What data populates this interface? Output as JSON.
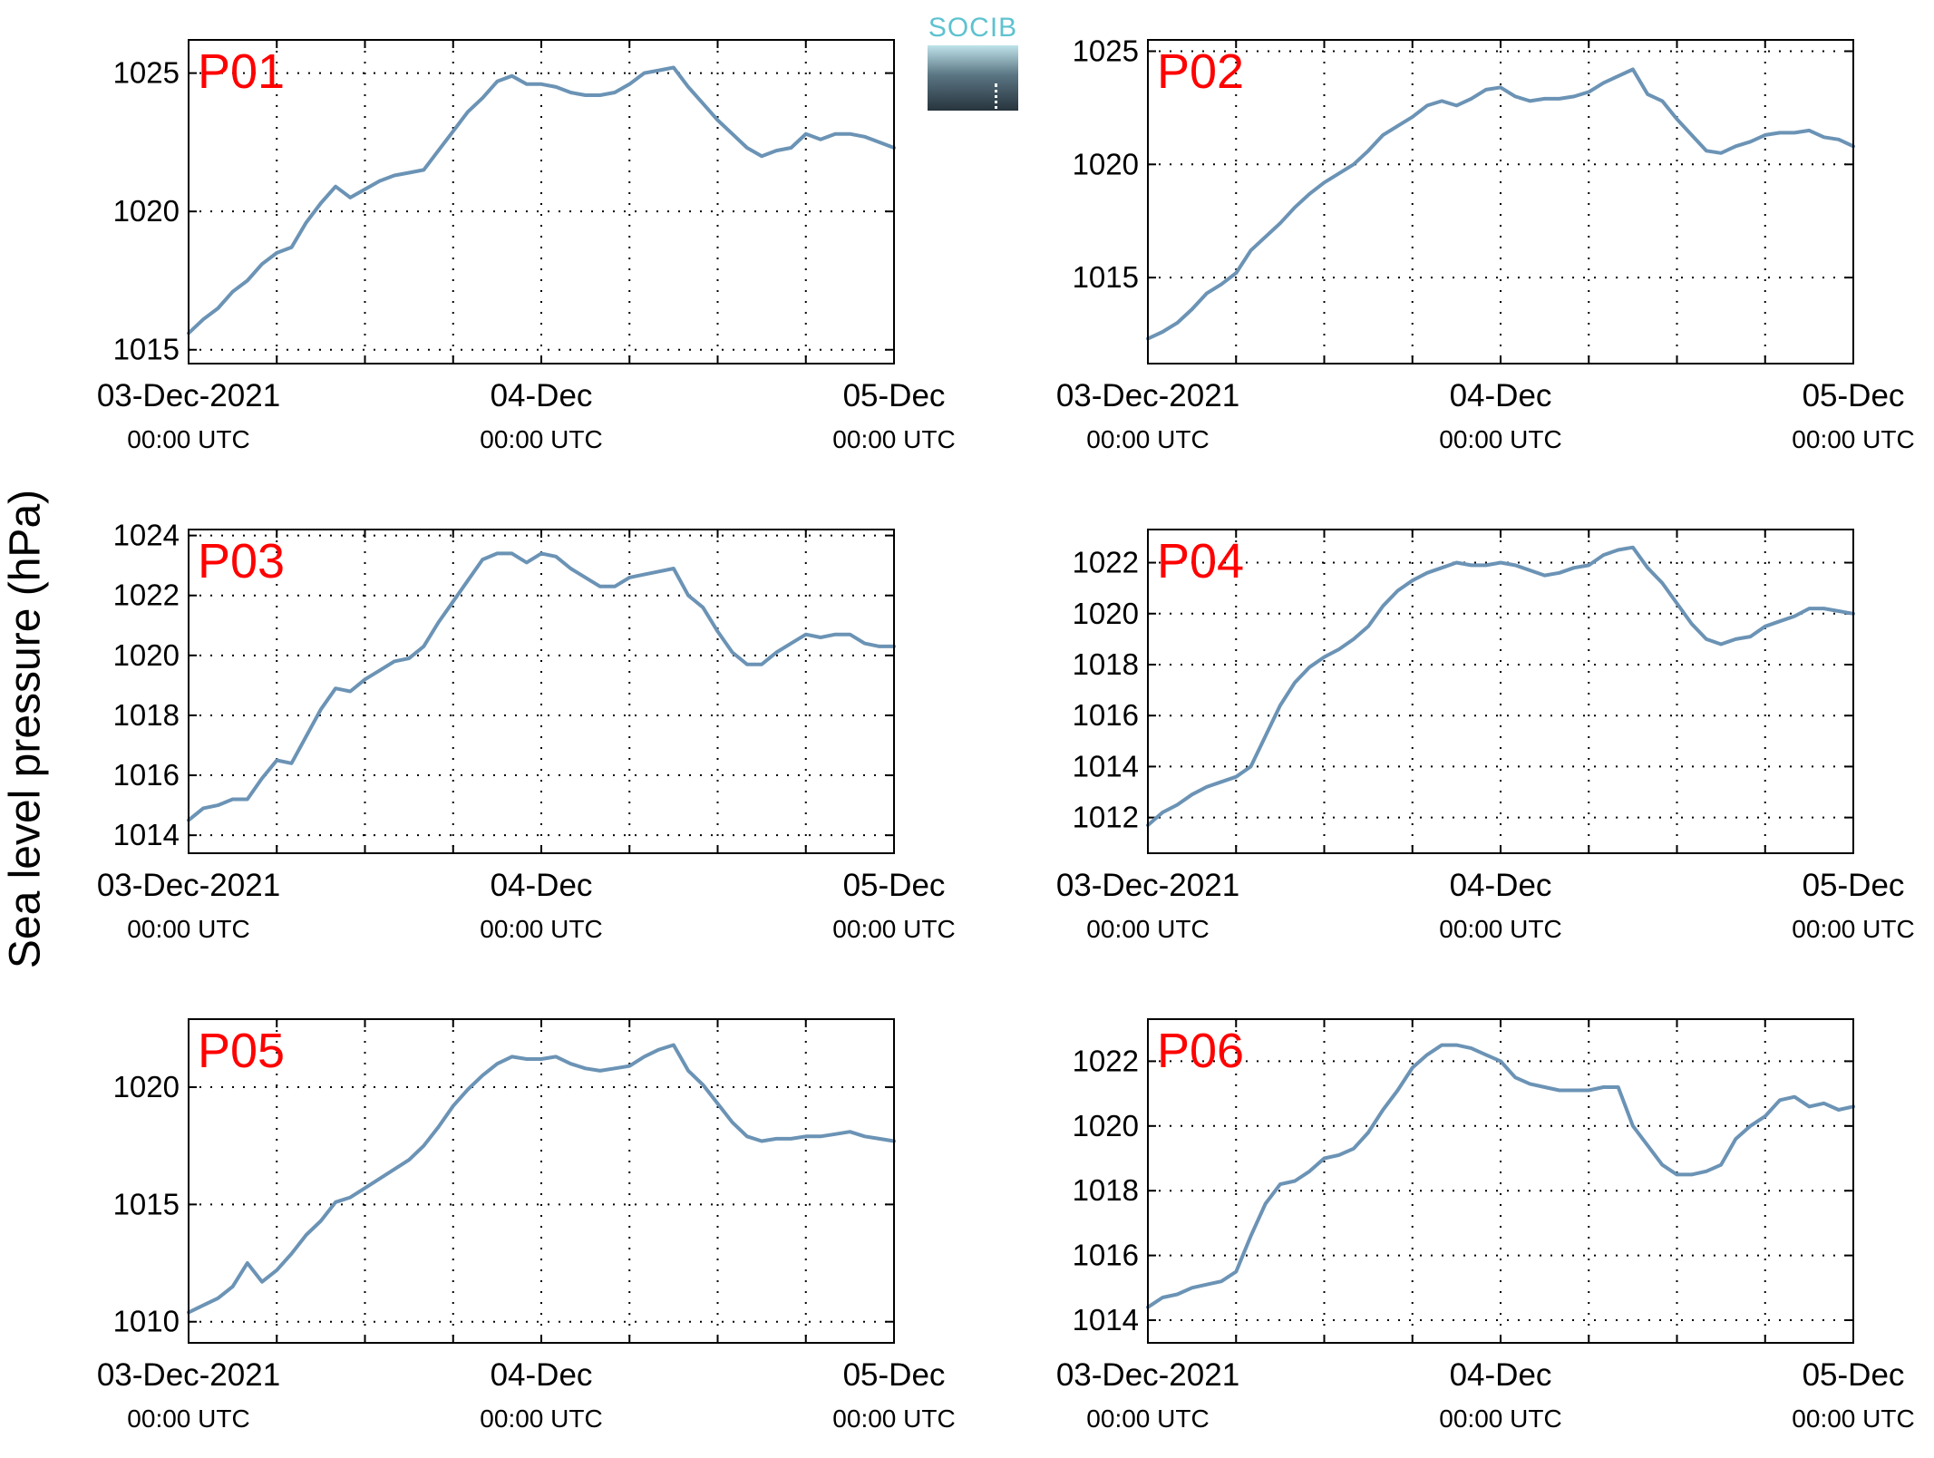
{
  "figure": {
    "ylabel": "Sea level pressure (hPa)",
    "logo_text": "SOCIB",
    "line_color": "#6b93b5",
    "label_color": "#ff0000"
  },
  "chart_data": [
    {
      "type": "line",
      "label": "P01",
      "x_tick_labels": [
        [
          "03-Dec-2021",
          "00:00 UTC"
        ],
        [
          "04-Dec",
          "00:00 UTC"
        ],
        [
          "05-Dec",
          "00:00 UTC"
        ]
      ],
      "x_range_hours": [
        0,
        48
      ],
      "ylim": [
        1014.5,
        1026.2
      ],
      "yticks": [
        1015,
        1020,
        1025
      ],
      "grid": true,
      "x": [
        0,
        1,
        2,
        3,
        4,
        5,
        6,
        7,
        8,
        9,
        10,
        11,
        12,
        13,
        14,
        15,
        16,
        17,
        18,
        19,
        20,
        21,
        22,
        23,
        24,
        25,
        26,
        27,
        28,
        29,
        30,
        31,
        32,
        33,
        34,
        35,
        36,
        37,
        38,
        39,
        40,
        41,
        42,
        43,
        44,
        45,
        46,
        47,
        48
      ],
      "y": [
        1015.6,
        1016.1,
        1016.5,
        1017.1,
        1017.5,
        1018.1,
        1018.5,
        1018.7,
        1019.6,
        1020.3,
        1020.9,
        1020.5,
        1020.8,
        1021.1,
        1021.3,
        1021.4,
        1021.5,
        1022.2,
        1022.9,
        1023.6,
        1024.1,
        1024.7,
        1024.9,
        1024.6,
        1024.6,
        1024.5,
        1024.3,
        1024.2,
        1024.2,
        1024.3,
        1024.6,
        1025.0,
        1025.1,
        1025.2,
        1024.5,
        1023.9,
        1023.3,
        1022.8,
        1022.3,
        1022.0,
        1022.2,
        1022.3,
        1022.8,
        1022.6,
        1022.8,
        1022.8,
        1022.7,
        1022.5,
        1022.3
      ]
    },
    {
      "type": "line",
      "label": "P02",
      "x_tick_labels": [
        [
          "03-Dec-2021",
          "00:00 UTC"
        ],
        [
          "04-Dec",
          "00:00 UTC"
        ],
        [
          "05-Dec",
          "00:00 UTC"
        ]
      ],
      "x_range_hours": [
        0,
        48
      ],
      "ylim": [
        1011.2,
        1025.5
      ],
      "yticks": [
        1015,
        1020,
        1025
      ],
      "grid": true,
      "x": [
        0,
        1,
        2,
        3,
        4,
        5,
        6,
        7,
        8,
        9,
        10,
        11,
        12,
        13,
        14,
        15,
        16,
        17,
        18,
        19,
        20,
        21,
        22,
        23,
        24,
        25,
        26,
        27,
        28,
        29,
        30,
        31,
        32,
        33,
        34,
        35,
        36,
        37,
        38,
        39,
        40,
        41,
        42,
        43,
        44,
        45,
        46,
        47,
        48
      ],
      "y": [
        1012.3,
        1012.6,
        1013.0,
        1013.6,
        1014.3,
        1014.7,
        1015.2,
        1016.2,
        1016.8,
        1017.4,
        1018.1,
        1018.7,
        1019.2,
        1019.6,
        1020.0,
        1020.6,
        1021.3,
        1021.7,
        1022.1,
        1022.6,
        1022.8,
        1022.6,
        1022.9,
        1023.3,
        1023.4,
        1023.0,
        1022.8,
        1022.9,
        1022.9,
        1023.0,
        1023.2,
        1023.6,
        1023.9,
        1024.2,
        1023.1,
        1022.8,
        1022.0,
        1021.3,
        1020.6,
        1020.5,
        1020.8,
        1021.0,
        1021.3,
        1021.4,
        1021.4,
        1021.5,
        1021.2,
        1021.1,
        1020.8
      ]
    },
    {
      "type": "line",
      "label": "P03",
      "x_tick_labels": [
        [
          "03-Dec-2021",
          "00:00 UTC"
        ],
        [
          "04-Dec",
          "00:00 UTC"
        ],
        [
          "05-Dec",
          "00:00 UTC"
        ]
      ],
      "x_range_hours": [
        0,
        48
      ],
      "ylim": [
        1013.4,
        1024.2
      ],
      "yticks": [
        1014,
        1016,
        1018,
        1020,
        1022,
        1024
      ],
      "grid": true,
      "x": [
        0,
        1,
        2,
        3,
        4,
        5,
        6,
        7,
        8,
        9,
        10,
        11,
        12,
        13,
        14,
        15,
        16,
        17,
        18,
        19,
        20,
        21,
        22,
        23,
        24,
        25,
        26,
        27,
        28,
        29,
        30,
        31,
        32,
        33,
        34,
        35,
        36,
        37,
        38,
        39,
        40,
        41,
        42,
        43,
        44,
        45,
        46,
        47,
        48
      ],
      "y": [
        1014.5,
        1014.9,
        1015.0,
        1015.2,
        1015.2,
        1015.9,
        1016.5,
        1016.4,
        1017.3,
        1018.2,
        1018.9,
        1018.8,
        1019.2,
        1019.5,
        1019.8,
        1019.9,
        1020.3,
        1021.1,
        1021.8,
        1022.5,
        1023.2,
        1023.4,
        1023.4,
        1023.1,
        1023.4,
        1023.3,
        1022.9,
        1022.6,
        1022.3,
        1022.3,
        1022.6,
        1022.7,
        1022.8,
        1022.9,
        1022.0,
        1021.6,
        1020.8,
        1020.1,
        1019.7,
        1019.7,
        1020.1,
        1020.4,
        1020.7,
        1020.6,
        1020.7,
        1020.7,
        1020.4,
        1020.3,
        1020.3
      ]
    },
    {
      "type": "line",
      "label": "P04",
      "x_tick_labels": [
        [
          "03-Dec-2021",
          "00:00 UTC"
        ],
        [
          "04-Dec",
          "00:00 UTC"
        ],
        [
          "05-Dec",
          "00:00 UTC"
        ]
      ],
      "x_range_hours": [
        0,
        48
      ],
      "ylim": [
        1010.6,
        1023.3
      ],
      "yticks": [
        1012,
        1014,
        1016,
        1018,
        1020,
        1022
      ],
      "grid": true,
      "x": [
        0,
        1,
        2,
        3,
        4,
        5,
        6,
        7,
        8,
        9,
        10,
        11,
        12,
        13,
        14,
        15,
        16,
        17,
        18,
        19,
        20,
        21,
        22,
        23,
        24,
        25,
        26,
        27,
        28,
        29,
        30,
        31,
        32,
        33,
        34,
        35,
        36,
        37,
        38,
        39,
        40,
        41,
        42,
        43,
        44,
        45,
        46,
        47,
        48
      ],
      "y": [
        1011.7,
        1012.2,
        1012.5,
        1012.9,
        1013.2,
        1013.4,
        1013.6,
        1014.0,
        1015.2,
        1016.4,
        1017.3,
        1017.9,
        1018.3,
        1018.6,
        1019.0,
        1019.5,
        1020.3,
        1020.9,
        1021.3,
        1021.6,
        1021.8,
        1022.0,
        1021.9,
        1021.9,
        1022.0,
        1021.9,
        1021.7,
        1021.5,
        1021.6,
        1021.8,
        1021.9,
        1022.3,
        1022.5,
        1022.6,
        1021.8,
        1021.2,
        1020.4,
        1019.6,
        1019.0,
        1018.8,
        1019.0,
        1019.1,
        1019.5,
        1019.7,
        1019.9,
        1020.2,
        1020.2,
        1020.1,
        1020.0
      ]
    },
    {
      "type": "line",
      "label": "P05",
      "x_tick_labels": [
        [
          "03-Dec-2021",
          "00:00 UTC"
        ],
        [
          "04-Dec",
          "00:00 UTC"
        ],
        [
          "05-Dec",
          "00:00 UTC"
        ]
      ],
      "x_range_hours": [
        0,
        48
      ],
      "ylim": [
        1009.1,
        1022.9
      ],
      "yticks": [
        1010,
        1015,
        1020
      ],
      "grid": true,
      "x": [
        0,
        1,
        2,
        3,
        4,
        5,
        6,
        7,
        8,
        9,
        10,
        11,
        12,
        13,
        14,
        15,
        16,
        17,
        18,
        19,
        20,
        21,
        22,
        23,
        24,
        25,
        26,
        27,
        28,
        29,
        30,
        31,
        32,
        33,
        34,
        35,
        36,
        37,
        38,
        39,
        40,
        41,
        42,
        43,
        44,
        45,
        46,
        47,
        48
      ],
      "y": [
        1010.4,
        1010.7,
        1011.0,
        1011.5,
        1012.5,
        1011.7,
        1012.2,
        1012.9,
        1013.7,
        1014.3,
        1015.1,
        1015.3,
        1015.7,
        1016.1,
        1016.5,
        1016.9,
        1017.5,
        1018.3,
        1019.2,
        1019.9,
        1020.5,
        1021.0,
        1021.3,
        1021.2,
        1021.2,
        1021.3,
        1021.0,
        1020.8,
        1020.7,
        1020.8,
        1020.9,
        1021.3,
        1021.6,
        1021.8,
        1020.7,
        1020.1,
        1019.3,
        1018.5,
        1017.9,
        1017.7,
        1017.8,
        1017.8,
        1017.9,
        1017.9,
        1018.0,
        1018.1,
        1017.9,
        1017.8,
        1017.7
      ]
    },
    {
      "type": "line",
      "label": "P06",
      "x_tick_labels": [
        [
          "03-Dec-2021",
          "00:00 UTC"
        ],
        [
          "04-Dec",
          "00:00 UTC"
        ],
        [
          "05-Dec",
          "00:00 UTC"
        ]
      ],
      "x_range_hours": [
        0,
        48
      ],
      "ylim": [
        1013.3,
        1023.3
      ],
      "yticks": [
        1014,
        1016,
        1018,
        1020,
        1022
      ],
      "grid": true,
      "x": [
        0,
        1,
        2,
        3,
        4,
        5,
        6,
        7,
        8,
        9,
        10,
        11,
        12,
        13,
        14,
        15,
        16,
        17,
        18,
        19,
        20,
        21,
        22,
        23,
        24,
        25,
        26,
        27,
        28,
        29,
        30,
        31,
        32,
        33,
        34,
        35,
        36,
        37,
        38,
        39,
        40,
        41,
        42,
        43,
        44,
        45,
        46,
        47,
        48
      ],
      "y": [
        1014.4,
        1014.7,
        1014.8,
        1015.0,
        1015.1,
        1015.2,
        1015.5,
        1016.6,
        1017.6,
        1018.2,
        1018.3,
        1018.6,
        1019.0,
        1019.1,
        1019.3,
        1019.8,
        1020.5,
        1021.1,
        1021.8,
        1022.2,
        1022.5,
        1022.5,
        1022.4,
        1022.2,
        1022.0,
        1021.5,
        1021.3,
        1021.2,
        1021.1,
        1021.1,
        1021.1,
        1021.2,
        1021.2,
        1020.0,
        1019.4,
        1018.8,
        1018.5,
        1018.5,
        1018.6,
        1018.8,
        1019.6,
        1020.0,
        1020.3,
        1020.8,
        1020.9,
        1020.6,
        1020.7,
        1020.5,
        1020.6
      ]
    }
  ]
}
